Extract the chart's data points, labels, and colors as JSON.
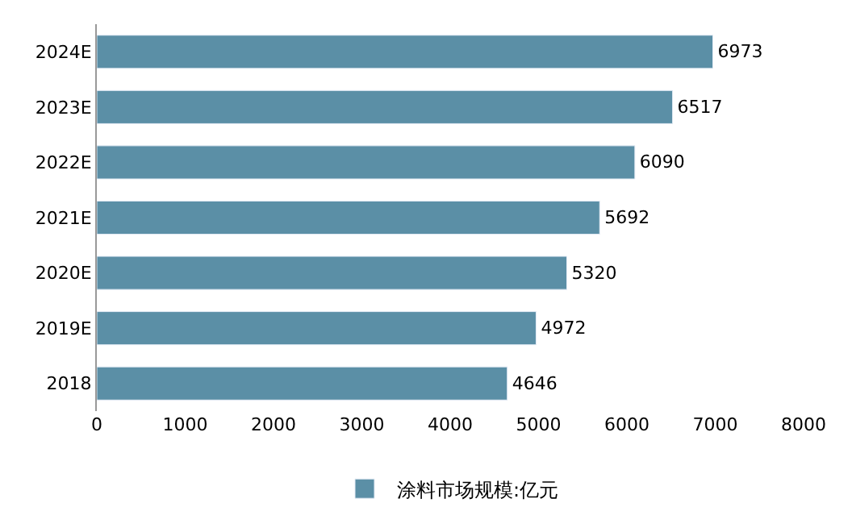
{
  "chart_data": {
    "type": "bar",
    "orientation": "horizontal",
    "categories": [
      "2024E",
      "2023E",
      "2022E",
      "2021E",
      "2020E",
      "2019E",
      "2018"
    ],
    "series": [
      {
        "name": "涂料市场规模:亿元",
        "color": "#5b8fa6",
        "values": [
          6973,
          6517,
          6090,
          5692,
          5320,
          4972,
          4646
        ]
      }
    ],
    "xlim": [
      0,
      8000
    ],
    "xticks": [
      0,
      1000,
      2000,
      3000,
      4000,
      5000,
      6000,
      7000,
      8000
    ],
    "data_labels": true,
    "grid": false,
    "legend": "bottom"
  }
}
